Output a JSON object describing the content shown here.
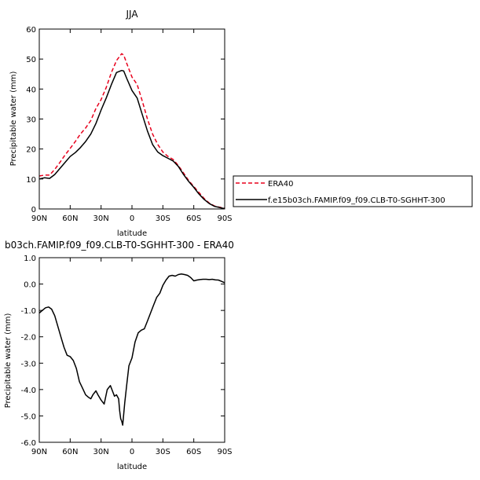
{
  "chart_data": [
    {
      "type": "line",
      "title": "JJA",
      "xlabel": "latitude",
      "ylabel": "Precipitable water (mm)",
      "ylim": [
        0,
        60
      ],
      "xlim": [
        90,
        -90
      ],
      "yticks": [
        0,
        10,
        20,
        30,
        40,
        50,
        60
      ],
      "xticks": [
        {
          "value": 90,
          "label": "90N"
        },
        {
          "value": 60,
          "label": "60N"
        },
        {
          "value": 30,
          "label": "30N"
        },
        {
          "value": 0,
          "label": "0"
        },
        {
          "value": -30,
          "label": "30S"
        },
        {
          "value": -60,
          "label": "60S"
        },
        {
          "value": -90,
          "label": "90S"
        }
      ],
      "grid": false,
      "legend_position": "right",
      "series": [
        {
          "name": "ERA40",
          "color": "#e8001c",
          "dash": "dashed",
          "x": [
            90,
            85,
            80,
            75,
            70,
            65,
            60,
            55,
            50,
            45,
            40,
            35,
            30,
            25,
            20,
            15,
            10,
            8,
            5,
            0,
            -5,
            -10,
            -15,
            -20,
            -25,
            -30,
            -35,
            -40,
            -45,
            -50,
            -55,
            -60,
            -65,
            -70,
            -75,
            -80,
            -85,
            -90
          ],
          "y": [
            11,
            11.3,
            11.3,
            13.2,
            15.5,
            18,
            20.2,
            22.5,
            25,
            27,
            29.5,
            33.5,
            36.5,
            40.5,
            45.5,
            49.5,
            51.8,
            51.3,
            48.5,
            44,
            41.5,
            36,
            30,
            25,
            21.5,
            19,
            17.5,
            16.5,
            14.5,
            12,
            9.5,
            7.5,
            5.5,
            3.5,
            2,
            1,
            0.6,
            0.3
          ]
        },
        {
          "name": "f.e15b03ch.FAMIP.f09_f09.CLB-T0-SGHHT-300",
          "color": "#000000",
          "dash": "solid",
          "x": [
            90,
            85,
            80,
            75,
            70,
            65,
            60,
            55,
            50,
            45,
            40,
            35,
            30,
            25,
            20,
            15,
            10,
            8,
            5,
            0,
            -5,
            -10,
            -15,
            -20,
            -25,
            -30,
            -35,
            -40,
            -45,
            -50,
            -55,
            -60,
            -65,
            -70,
            -75,
            -80,
            -85,
            -90
          ],
          "y": [
            10,
            10.4,
            10.2,
            11.5,
            13.5,
            15.5,
            17.5,
            18.8,
            20.5,
            22.5,
            25,
            28.5,
            33,
            37,
            41.5,
            45.5,
            46.2,
            46,
            43.5,
            39.5,
            37,
            31.5,
            26,
            21.5,
            19,
            17.8,
            16.9,
            16,
            14.2,
            11.5,
            9.2,
            7.2,
            5,
            3.2,
            1.8,
            0.9,
            0.5,
            0.1
          ]
        }
      ]
    },
    {
      "type": "line",
      "title": "b03ch.FAMIP.f09_f09.CLB-T0-SGHHT-300 - ERA40",
      "xlabel": "latitude",
      "ylabel": "Precipitable water (mm)",
      "ylim": [
        -6,
        1
      ],
      "xlim": [
        90,
        -90
      ],
      "yticks": [
        -6,
        -5,
        -4,
        -3,
        -2,
        -1,
        0,
        1
      ],
      "xticks": [
        {
          "value": 90,
          "label": "90N"
        },
        {
          "value": 60,
          "label": "60N"
        },
        {
          "value": 30,
          "label": "30N"
        },
        {
          "value": 0,
          "label": "0"
        },
        {
          "value": -30,
          "label": "30S"
        },
        {
          "value": -60,
          "label": "60S"
        },
        {
          "value": -90,
          "label": "90S"
        }
      ],
      "grid": false,
      "series": [
        {
          "name": "",
          "color": "#000000",
          "dash": "solid",
          "x": [
            90,
            87,
            84,
            81,
            78,
            75,
            72,
            69,
            66,
            63,
            60,
            57,
            54,
            51,
            48,
            45,
            42,
            40,
            38,
            35,
            33,
            30,
            27,
            24,
            21,
            19,
            17,
            15,
            13,
            12,
            11,
            10,
            9,
            7,
            5,
            3,
            0,
            -3,
            -6,
            -9,
            -12,
            -15,
            -18,
            -21,
            -24,
            -27,
            -30,
            -33,
            -36,
            -39,
            -42,
            -45,
            -48,
            -51,
            -54,
            -57,
            -60,
            -63,
            -66,
            -69,
            -72,
            -75,
            -78,
            -81,
            -84,
            -87,
            -90
          ],
          "y": [
            -1.1,
            -1.0,
            -0.9,
            -0.87,
            -0.95,
            -1.2,
            -1.6,
            -2.0,
            -2.4,
            -2.7,
            -2.75,
            -2.9,
            -3.2,
            -3.7,
            -3.95,
            -4.2,
            -4.3,
            -4.35,
            -4.2,
            -4.05,
            -4.2,
            -4.4,
            -4.55,
            -4.0,
            -3.85,
            -4.05,
            -4.25,
            -4.2,
            -4.35,
            -4.8,
            -5.1,
            -5.2,
            -5.35,
            -4.5,
            -3.8,
            -3.1,
            -2.8,
            -2.2,
            -1.85,
            -1.75,
            -1.7,
            -1.4,
            -1.1,
            -0.8,
            -0.5,
            -0.35,
            -0.05,
            0.15,
            0.3,
            0.33,
            0.3,
            0.36,
            0.38,
            0.36,
            0.33,
            0.25,
            0.12,
            0.15,
            0.17,
            0.18,
            0.18,
            0.17,
            0.18,
            0.16,
            0.15,
            0.1,
            0.05
          ]
        }
      ]
    }
  ]
}
